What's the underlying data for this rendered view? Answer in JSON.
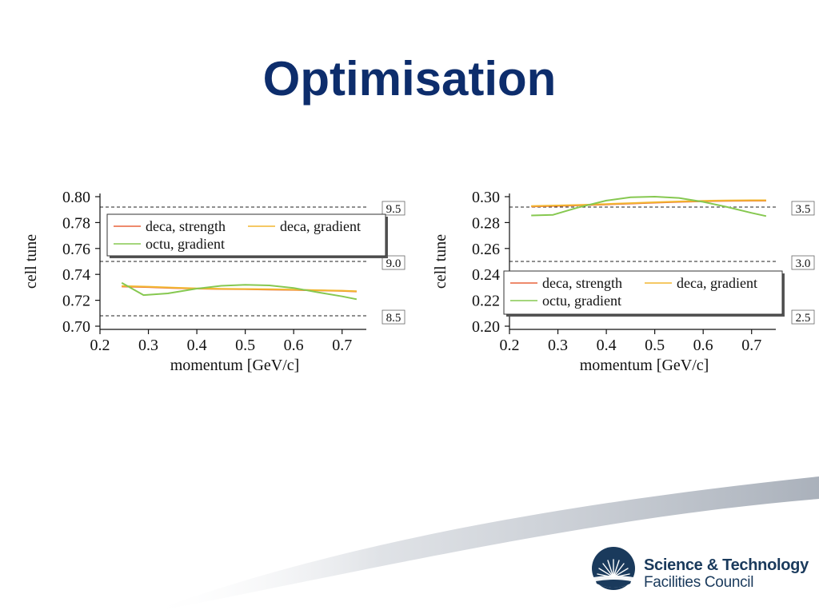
{
  "slide": {
    "title": "Optimisation"
  },
  "logo": {
    "line1": "Science & Technology",
    "line2": "Facilities Council"
  },
  "colors": {
    "title": "#0d2d6c",
    "deca_strength": "#e8643c",
    "deca_gradient": "#f2b630",
    "octu_gradient": "#86c850",
    "logo_blue": "#1a3a5c",
    "swoosh": "#b4bac3"
  },
  "chart_data": [
    {
      "type": "line",
      "ylabel": "cell tune",
      "xlabel": "momentum [GeV/c]",
      "xlim": [
        0.2,
        0.75
      ],
      "ylim": [
        0.7,
        0.8
      ],
      "xticks": [
        "0.2",
        "0.3",
        "0.4",
        "0.5",
        "0.6",
        "0.7"
      ],
      "yticks": [
        "0.70",
        "0.72",
        "0.74",
        "0.76",
        "0.78",
        "0.80"
      ],
      "legend_position": "top",
      "legend_entries": [
        "deca, strength",
        "deca, gradient",
        "octu, gradient"
      ],
      "reference_lines": [
        {
          "y": 0.792,
          "label": "9.5"
        },
        {
          "y": 0.75,
          "label": "9.0"
        },
        {
          "y": 0.708,
          "label": "8.5"
        }
      ],
      "series": [
        {
          "name": "deca, strength",
          "color": "#e8643c",
          "x": [
            0.245,
            0.3,
            0.35,
            0.4,
            0.45,
            0.5,
            0.55,
            0.6,
            0.65,
            0.7,
            0.73
          ],
          "y": [
            0.7306,
            0.7302,
            0.7295,
            0.729,
            0.7287,
            0.7285,
            0.7283,
            0.728,
            0.7276,
            0.7272,
            0.7268
          ]
        },
        {
          "name": "deca, gradient",
          "color": "#f2b630",
          "x": [
            0.245,
            0.3,
            0.35,
            0.4,
            0.45,
            0.5,
            0.55,
            0.6,
            0.65,
            0.7,
            0.73
          ],
          "y": [
            0.731,
            0.7305,
            0.7298,
            0.7292,
            0.7289,
            0.7287,
            0.7285,
            0.7282,
            0.7278,
            0.7274,
            0.727
          ]
        },
        {
          "name": "octu, gradient",
          "color": "#86c850",
          "x": [
            0.245,
            0.29,
            0.34,
            0.4,
            0.45,
            0.5,
            0.55,
            0.6,
            0.65,
            0.7,
            0.73
          ],
          "y": [
            0.7335,
            0.724,
            0.7253,
            0.729,
            0.7312,
            0.732,
            0.7315,
            0.7295,
            0.7262,
            0.723,
            0.7208
          ]
        }
      ]
    },
    {
      "type": "line",
      "ylabel": "cell tune",
      "xlabel": "momentum [GeV/c]",
      "xlim": [
        0.2,
        0.75
      ],
      "ylim": [
        0.2,
        0.3
      ],
      "xticks": [
        "0.2",
        "0.3",
        "0.4",
        "0.5",
        "0.6",
        "0.7"
      ],
      "yticks": [
        "0.20",
        "0.22",
        "0.24",
        "0.26",
        "0.28",
        "0.30"
      ],
      "legend_position": "bottom",
      "legend_entries": [
        "deca, strength",
        "deca, gradient",
        "octu, gradient"
      ],
      "reference_lines": [
        {
          "y": 0.292,
          "label": "3.5"
        },
        {
          "y": 0.25,
          "label": "3.0"
        },
        {
          "y": 0.208,
          "label": "2.5"
        }
      ],
      "series": [
        {
          "name": "deca, strength",
          "color": "#e8643c",
          "x": [
            0.245,
            0.3,
            0.35,
            0.4,
            0.45,
            0.5,
            0.55,
            0.6,
            0.65,
            0.7,
            0.73
          ],
          "y": [
            0.2925,
            0.2929,
            0.2934,
            0.294,
            0.2947,
            0.2954,
            0.296,
            0.2965,
            0.2968,
            0.2969,
            0.2969
          ]
        },
        {
          "name": "deca, gradient",
          "color": "#f2b630",
          "x": [
            0.245,
            0.3,
            0.35,
            0.4,
            0.45,
            0.5,
            0.55,
            0.6,
            0.65,
            0.7,
            0.73
          ],
          "y": [
            0.2928,
            0.2932,
            0.2937,
            0.2943,
            0.295,
            0.2957,
            0.2963,
            0.2968,
            0.2971,
            0.2972,
            0.2972
          ]
        },
        {
          "name": "octu, gradient",
          "color": "#86c850",
          "x": [
            0.245,
            0.29,
            0.34,
            0.4,
            0.45,
            0.5,
            0.55,
            0.6,
            0.65,
            0.7,
            0.73
          ],
          "y": [
            0.2855,
            0.286,
            0.2915,
            0.297,
            0.2995,
            0.3,
            0.299,
            0.296,
            0.292,
            0.2875,
            0.285
          ]
        }
      ]
    }
  ]
}
